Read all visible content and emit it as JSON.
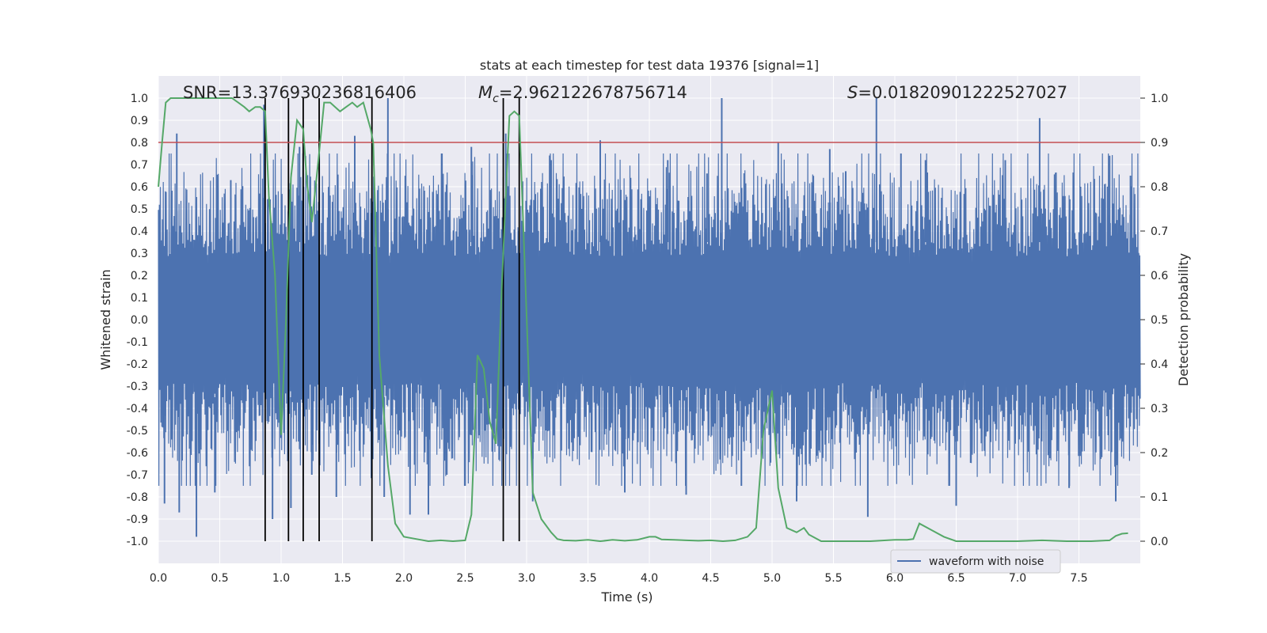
{
  "chart_data": {
    "type": "line",
    "title": "stats at each timestep for test data 19376 [signal=1]",
    "xlabel": "Time (s)",
    "ylabel": "Whitened strain",
    "y2label": "Detection probability",
    "xlim": [
      0.0,
      8.0
    ],
    "ylim": [
      -1.1,
      1.1
    ],
    "y2lim": [
      -0.05,
      1.05
    ],
    "xticks": [
      "0.0",
      "0.5",
      "1.0",
      "1.5",
      "2.0",
      "2.5",
      "3.0",
      "3.5",
      "4.0",
      "4.5",
      "5.0",
      "5.5",
      "6.0",
      "6.5",
      "7.0",
      "7.5"
    ],
    "yticks": [
      "-1.0",
      "-0.9",
      "-0.8",
      "-0.7",
      "-0.6",
      "-0.5",
      "-0.4",
      "-0.3",
      "-0.2",
      "-0.1",
      "0.0",
      "0.1",
      "0.2",
      "0.3",
      "0.4",
      "0.5",
      "0.6",
      "0.7",
      "0.8",
      "0.9",
      "1.0"
    ],
    "y2ticks": [
      "0.0",
      "0.1",
      "0.2",
      "0.3",
      "0.4",
      "0.5",
      "0.6",
      "0.7",
      "0.8",
      "0.9",
      "1.0"
    ],
    "grid": true,
    "legend_placement": "lower-center",
    "annotations": {
      "snr": "SNR=13.376930236816406",
      "mc_symbol": "M",
      "mc_sub": "c",
      "mc_value": "=2.962122678756714",
      "s_symbol": "S",
      "s_value": "=0.01820901222527027"
    },
    "threshold": {
      "y2": 0.9,
      "color": "#c44e52"
    },
    "vertical_markers": [
      0.87,
      1.06,
      1.18,
      1.31,
      1.74,
      2.81,
      2.94
    ],
    "series": [
      {
        "name": "waveform with noise",
        "axis": "left",
        "color": "#4c72b0",
        "band": {
          "core": 0.38,
          "typical_peak": 0.6,
          "min": -0.98,
          "max": 1.0
        },
        "spikes": [
          {
            "x": 0.15,
            "y": 0.84
          },
          {
            "x": 0.31,
            "y": -0.98
          },
          {
            "x": 0.05,
            "y": -0.83
          },
          {
            "x": 0.17,
            "y": -0.87
          },
          {
            "x": 0.46,
            "y": -0.78
          },
          {
            "x": 0.59,
            "y": 0.63
          },
          {
            "x": 0.86,
            "y": 0.97
          },
          {
            "x": 0.93,
            "y": -0.9
          },
          {
            "x": 1.08,
            "y": -0.85
          },
          {
            "x": 1.15,
            "y": 0.78
          },
          {
            "x": 1.25,
            "y": -0.7
          },
          {
            "x": 1.45,
            "y": -0.8
          },
          {
            "x": 1.6,
            "y": 0.83
          },
          {
            "x": 1.87,
            "y": 1.0
          },
          {
            "x": 1.84,
            "y": -0.8
          },
          {
            "x": 2.05,
            "y": -0.88
          },
          {
            "x": 2.2,
            "y": -0.88
          },
          {
            "x": 2.35,
            "y": -0.7
          },
          {
            "x": 2.55,
            "y": 0.78
          },
          {
            "x": 2.83,
            "y": 0.84
          },
          {
            "x": 3.05,
            "y": -0.82
          },
          {
            "x": 3.2,
            "y": 0.72
          },
          {
            "x": 3.6,
            "y": 0.81
          },
          {
            "x": 3.8,
            "y": -0.78
          },
          {
            "x": 4.15,
            "y": 0.72
          },
          {
            "x": 4.3,
            "y": -0.79
          },
          {
            "x": 4.47,
            "y": 0.66
          },
          {
            "x": 4.59,
            "y": 1.0
          },
          {
            "x": 4.75,
            "y": -0.75
          },
          {
            "x": 5.05,
            "y": 0.8
          },
          {
            "x": 5.2,
            "y": -0.82
          },
          {
            "x": 5.47,
            "y": 0.77
          },
          {
            "x": 5.6,
            "y": 0.67
          },
          {
            "x": 5.78,
            "y": -0.89
          },
          {
            "x": 5.85,
            "y": 1.0
          },
          {
            "x": 6.05,
            "y": 0.75
          },
          {
            "x": 6.25,
            "y": 0.72
          },
          {
            "x": 6.5,
            "y": -0.84
          },
          {
            "x": 6.9,
            "y": 0.72
          },
          {
            "x": 7.18,
            "y": 0.91
          },
          {
            "x": 7.42,
            "y": -0.76
          },
          {
            "x": 7.75,
            "y": 0.74
          },
          {
            "x": 7.8,
            "y": -0.82
          },
          {
            "x": 7.92,
            "y": 0.65
          }
        ]
      },
      {
        "name": "",
        "axis": "right",
        "color": "#55a868",
        "x": [
          0.0,
          0.03,
          0.06,
          0.1,
          0.2,
          0.3,
          0.45,
          0.6,
          0.65,
          0.7,
          0.74,
          0.79,
          0.83,
          0.87,
          0.9,
          0.95,
          1.0,
          1.04,
          1.08,
          1.13,
          1.18,
          1.21,
          1.25,
          1.3,
          1.35,
          1.4,
          1.44,
          1.48,
          1.53,
          1.58,
          1.62,
          1.67,
          1.73,
          1.75,
          1.8,
          1.87,
          1.93,
          2.0,
          2.1,
          2.2,
          2.3,
          2.4,
          2.5,
          2.55,
          2.6,
          2.65,
          2.7,
          2.75,
          2.8,
          2.86,
          2.9,
          2.94,
          3.0,
          3.05,
          3.12,
          3.2,
          3.25,
          3.3,
          3.4,
          3.5,
          3.6,
          3.7,
          3.8,
          3.9,
          4.0,
          4.05,
          4.1,
          4.2,
          4.3,
          4.4,
          4.5,
          4.6,
          4.7,
          4.8,
          4.87,
          4.93,
          5.0,
          5.05,
          5.12,
          5.2,
          5.26,
          5.3,
          5.4,
          5.5,
          5.6,
          5.8,
          6.0,
          6.1,
          6.15,
          6.2,
          6.3,
          6.4,
          6.5,
          6.6,
          6.8,
          7.0,
          7.2,
          7.4,
          7.6,
          7.75,
          7.8,
          7.85,
          7.9
        ],
        "y": [
          0.8,
          0.9,
          0.99,
          1.0,
          1.0,
          1.0,
          1.0,
          1.0,
          0.99,
          0.98,
          0.97,
          0.98,
          0.98,
          0.97,
          0.78,
          0.6,
          0.24,
          0.5,
          0.82,
          0.95,
          0.93,
          0.81,
          0.72,
          0.85,
          0.99,
          0.99,
          0.98,
          0.97,
          0.98,
          0.99,
          0.98,
          0.99,
          0.93,
          0.9,
          0.42,
          0.17,
          0.04,
          0.01,
          0.005,
          0.0,
          0.002,
          0.0,
          0.002,
          0.06,
          0.42,
          0.39,
          0.27,
          0.22,
          0.59,
          0.96,
          0.97,
          0.96,
          0.51,
          0.11,
          0.05,
          0.02,
          0.005,
          0.002,
          0.001,
          0.003,
          0.0,
          0.003,
          0.001,
          0.003,
          0.01,
          0.01,
          0.004,
          0.003,
          0.002,
          0.001,
          0.002,
          0.0,
          0.002,
          0.01,
          0.03,
          0.25,
          0.34,
          0.12,
          0.03,
          0.02,
          0.03,
          0.015,
          0.0,
          0.0,
          0.0,
          0.0,
          0.003,
          0.003,
          0.005,
          0.04,
          0.025,
          0.01,
          0.0,
          0.0,
          0.0,
          0.0,
          0.002,
          0.0,
          0.0,
          0.002,
          0.012,
          0.017,
          0.018
        ]
      }
    ]
  }
}
